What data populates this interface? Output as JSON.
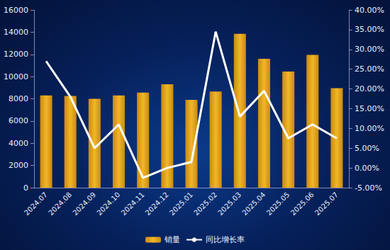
{
  "chart_data": {
    "type": "bar",
    "categories": [
      "2024.07",
      "2024.08",
      "2024.09",
      "2024.10",
      "2024.11",
      "2024.12",
      "2025.01",
      "2025.02",
      "2025.03",
      "2025.04",
      "2025.05",
      "2025.06",
      "2025.07"
    ],
    "series": [
      {
        "name": "销量",
        "type": "bar",
        "color": "#f2b62a",
        "values": [
          8300,
          8250,
          8000,
          8300,
          8550,
          9300,
          7900,
          8650,
          13850,
          11600,
          10450,
          11950,
          8950
        ]
      },
      {
        "name": "同比增长率",
        "type": "line",
        "color": "#ffffff",
        "axis": "y2",
        "values": [
          27.0,
          18.0,
          5.0,
          11.0,
          -2.5,
          0.0,
          1.5,
          34.5,
          13.0,
          19.5,
          7.5,
          11.0,
          7.5
        ]
      }
    ],
    "ylim": [
      0,
      16000
    ],
    "yticks": [
      0,
      2000,
      4000,
      6000,
      8000,
      10000,
      12000,
      14000,
      16000
    ],
    "y2lim": [
      -5,
      40
    ],
    "y2ticks": [
      {
        "value": -5,
        "label": "-5.00%"
      },
      {
        "value": 0,
        "label": "0.00%"
      },
      {
        "value": 5,
        "label": "5.00%"
      },
      {
        "value": 10,
        "label": "10.00%"
      },
      {
        "value": 15,
        "label": "15.00%"
      },
      {
        "value": 20,
        "label": "20.00%"
      },
      {
        "value": 25,
        "label": "25.00%"
      },
      {
        "value": 30,
        "label": "30.00%"
      },
      {
        "value": 35,
        "label": "35.00%"
      },
      {
        "value": 40,
        "label": "40.00%"
      }
    ],
    "grid": false,
    "legend": "bottom"
  }
}
